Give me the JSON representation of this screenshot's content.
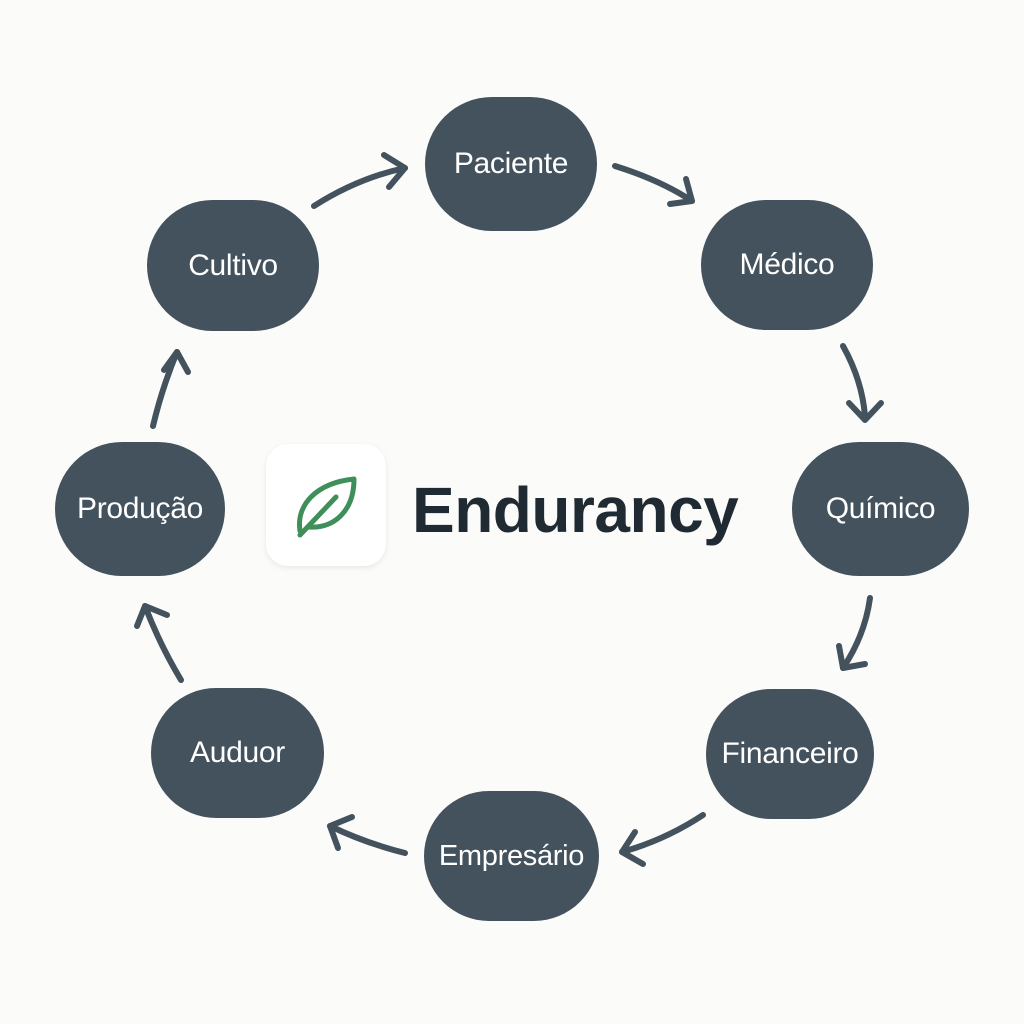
{
  "center": {
    "brand_name": "Endurancy",
    "logo_icon": "leaf-icon",
    "logo_color": "#3f8f5a"
  },
  "nodes": {
    "paciente": "Paciente",
    "medico": "Médico",
    "quimico": "Químico",
    "financeiro": "Financeiro",
    "empresario": "Empresário",
    "auduor": "Auduor",
    "producao": "Produção",
    "cultivo": "Cultivo"
  },
  "colors": {
    "node_fill": "#43525d",
    "node_text": "#ffffff",
    "arrow": "#43525d",
    "brand_text": "#1f2a32",
    "background": "#fbfbf9"
  },
  "flow": [
    "cultivo",
    "paciente",
    "medico",
    "quimico",
    "financeiro",
    "empresario",
    "auduor",
    "producao",
    "cultivo"
  ]
}
